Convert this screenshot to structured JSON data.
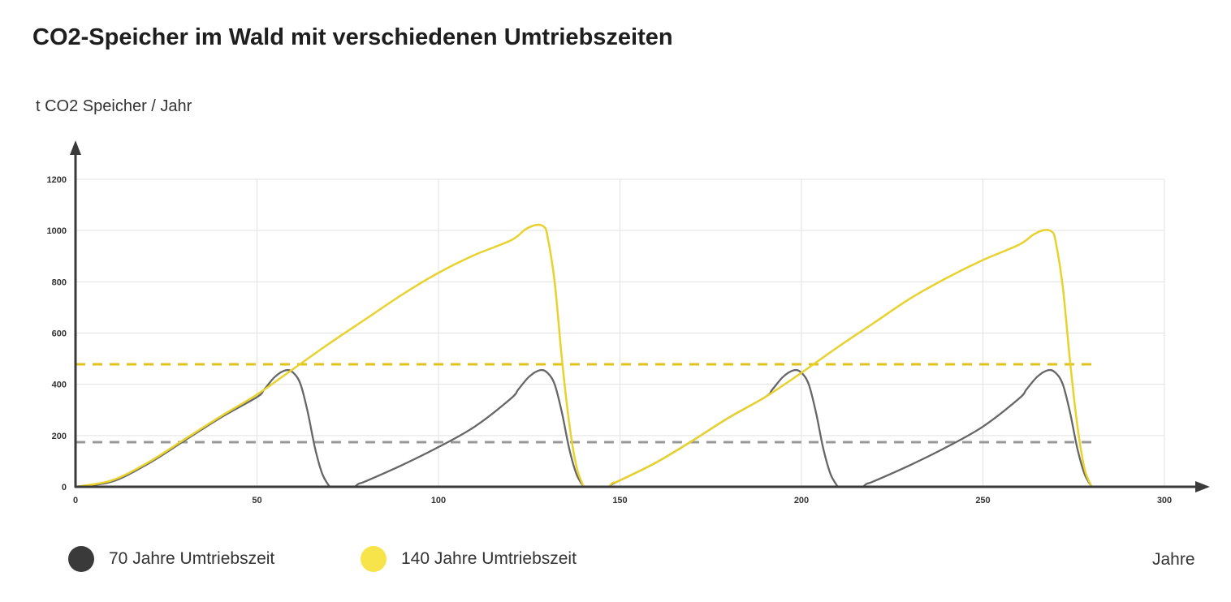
{
  "chart_data": {
    "type": "line",
    "title": "CO2-Speicher im Wald mit verschiedenen Umtriebszeiten",
    "ylabel": "t CO2 Speicher / Jahr",
    "xlabel": "Jahre",
    "xlim": [
      0,
      300
    ],
    "ylim": [
      0,
      1200
    ],
    "xticks": [
      0,
      50,
      100,
      150,
      200,
      250,
      300
    ],
    "yticks": [
      0,
      200,
      400,
      600,
      800,
      1000,
      1200
    ],
    "grid": true,
    "legend_position": "bottom-left",
    "series": [
      {
        "name": "70 Jahre Umtriebszeit",
        "color": "#666666",
        "legend_color": "#3a3a3a",
        "segments": [
          [
            [
              0,
              0
            ],
            [
              10,
              20
            ],
            [
              20,
              90
            ],
            [
              30,
              180
            ],
            [
              40,
              270
            ],
            [
              50,
              350
            ],
            [
              52,
              380
            ],
            [
              55,
              430
            ],
            [
              58,
              455
            ],
            [
              60,
              445
            ],
            [
              62,
              400
            ],
            [
              64,
              290
            ],
            [
              66,
              150
            ],
            [
              68,
              50
            ],
            [
              70,
              0
            ]
          ],
          [
            [
              77,
              0
            ],
            [
              78,
              12
            ],
            [
              80,
              22
            ],
            [
              90,
              85
            ],
            [
              100,
              155
            ],
            [
              110,
              235
            ],
            [
              120,
              345
            ],
            [
              122,
              380
            ],
            [
              125,
              430
            ],
            [
              128,
              455
            ],
            [
              130,
              445
            ],
            [
              132,
              400
            ],
            [
              134,
              290
            ],
            [
              136,
              150
            ],
            [
              138,
              50
            ],
            [
              140,
              0
            ]
          ],
          [
            [
              147,
              0
            ],
            [
              148,
              12
            ],
            [
              150,
              25
            ],
            [
              160,
              95
            ],
            [
              170,
              180
            ],
            [
              180,
              270
            ],
            [
              190,
              350
            ],
            [
              192,
              380
            ],
            [
              195,
              430
            ],
            [
              198,
              455
            ],
            [
              200,
              445
            ],
            [
              202,
              400
            ],
            [
              204,
              290
            ],
            [
              206,
              150
            ],
            [
              208,
              50
            ],
            [
              210,
              0
            ]
          ],
          [
            [
              217,
              0
            ],
            [
              218,
              12
            ],
            [
              220,
              22
            ],
            [
              230,
              85
            ],
            [
              240,
              155
            ],
            [
              250,
              235
            ],
            [
              260,
              345
            ],
            [
              262,
              380
            ],
            [
              265,
              430
            ],
            [
              268,
              455
            ],
            [
              270,
              445
            ],
            [
              272,
              400
            ],
            [
              274,
              290
            ],
            [
              276,
              150
            ],
            [
              278,
              50
            ],
            [
              280,
              0
            ]
          ]
        ],
        "average": 174,
        "average_color": "#999999"
      },
      {
        "name": "140 Jahre Umtriebszeit",
        "color": "#e8d22e",
        "legend_color": "#f7e34a",
        "segments": [
          [
            [
              0,
              0
            ],
            [
              10,
              25
            ],
            [
              20,
              95
            ],
            [
              30,
              185
            ],
            [
              40,
              275
            ],
            [
              50,
              360
            ],
            [
              60,
              460
            ],
            [
              70,
              560
            ],
            [
              80,
              655
            ],
            [
              90,
              750
            ],
            [
              100,
              835
            ],
            [
              110,
              905
            ],
            [
              120,
              962
            ],
            [
              124,
              1005
            ],
            [
              127,
              1022
            ],
            [
              129,
              1015
            ],
            [
              130,
              980
            ],
            [
              132,
              800
            ],
            [
              134,
              500
            ],
            [
              136,
              250
            ],
            [
              138,
              80
            ],
            [
              140,
              0
            ]
          ],
          [
            [
              147,
              0
            ],
            [
              148,
              15
            ],
            [
              150,
              25
            ],
            [
              160,
              95
            ],
            [
              170,
              180
            ],
            [
              180,
              270
            ],
            [
              190,
              350
            ],
            [
              200,
              445
            ],
            [
              210,
              545
            ],
            [
              220,
              640
            ],
            [
              230,
              735
            ],
            [
              240,
              815
            ],
            [
              250,
              885
            ],
            [
              260,
              945
            ],
            [
              264,
              985
            ],
            [
              267,
              1002
            ],
            [
              269,
              995
            ],
            [
              270,
              960
            ],
            [
              272,
              780
            ],
            [
              274,
              490
            ],
            [
              276,
              240
            ],
            [
              278,
              70
            ],
            [
              280,
              0
            ]
          ]
        ],
        "average": 478,
        "average_color": "#e0c21f"
      }
    ]
  }
}
